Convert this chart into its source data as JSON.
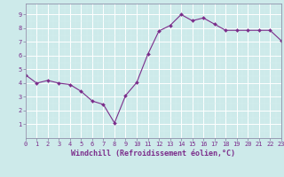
{
  "x": [
    0,
    1,
    2,
    3,
    4,
    5,
    6,
    7,
    8,
    9,
    10,
    11,
    12,
    13,
    14,
    15,
    16,
    17,
    18,
    19,
    20,
    21,
    22,
    23
  ],
  "y": [
    4.6,
    4.0,
    4.2,
    4.0,
    3.9,
    3.4,
    2.7,
    2.45,
    1.1,
    3.1,
    4.05,
    6.1,
    7.8,
    8.2,
    9.0,
    8.55,
    8.75,
    8.3,
    7.85,
    7.85,
    7.85,
    7.85,
    7.85,
    7.1
  ],
  "xlim": [
    0,
    23
  ],
  "ylim": [
    0,
    9.8
  ],
  "xticks": [
    0,
    1,
    2,
    3,
    4,
    5,
    6,
    7,
    8,
    9,
    10,
    11,
    12,
    13,
    14,
    15,
    16,
    17,
    18,
    19,
    20,
    21,
    22,
    23
  ],
  "yticks": [
    1,
    2,
    3,
    4,
    5,
    6,
    7,
    8,
    9
  ],
  "xlabel": "Windchill (Refroidissement éolien,°C)",
  "line_color": "#7b2d8b",
  "marker": "D",
  "marker_size": 2.0,
  "bg_color": "#cdeaea",
  "grid_color": "#b0d8d8",
  "tick_label_fontsize": 5.0,
  "xlabel_fontsize": 6.0
}
